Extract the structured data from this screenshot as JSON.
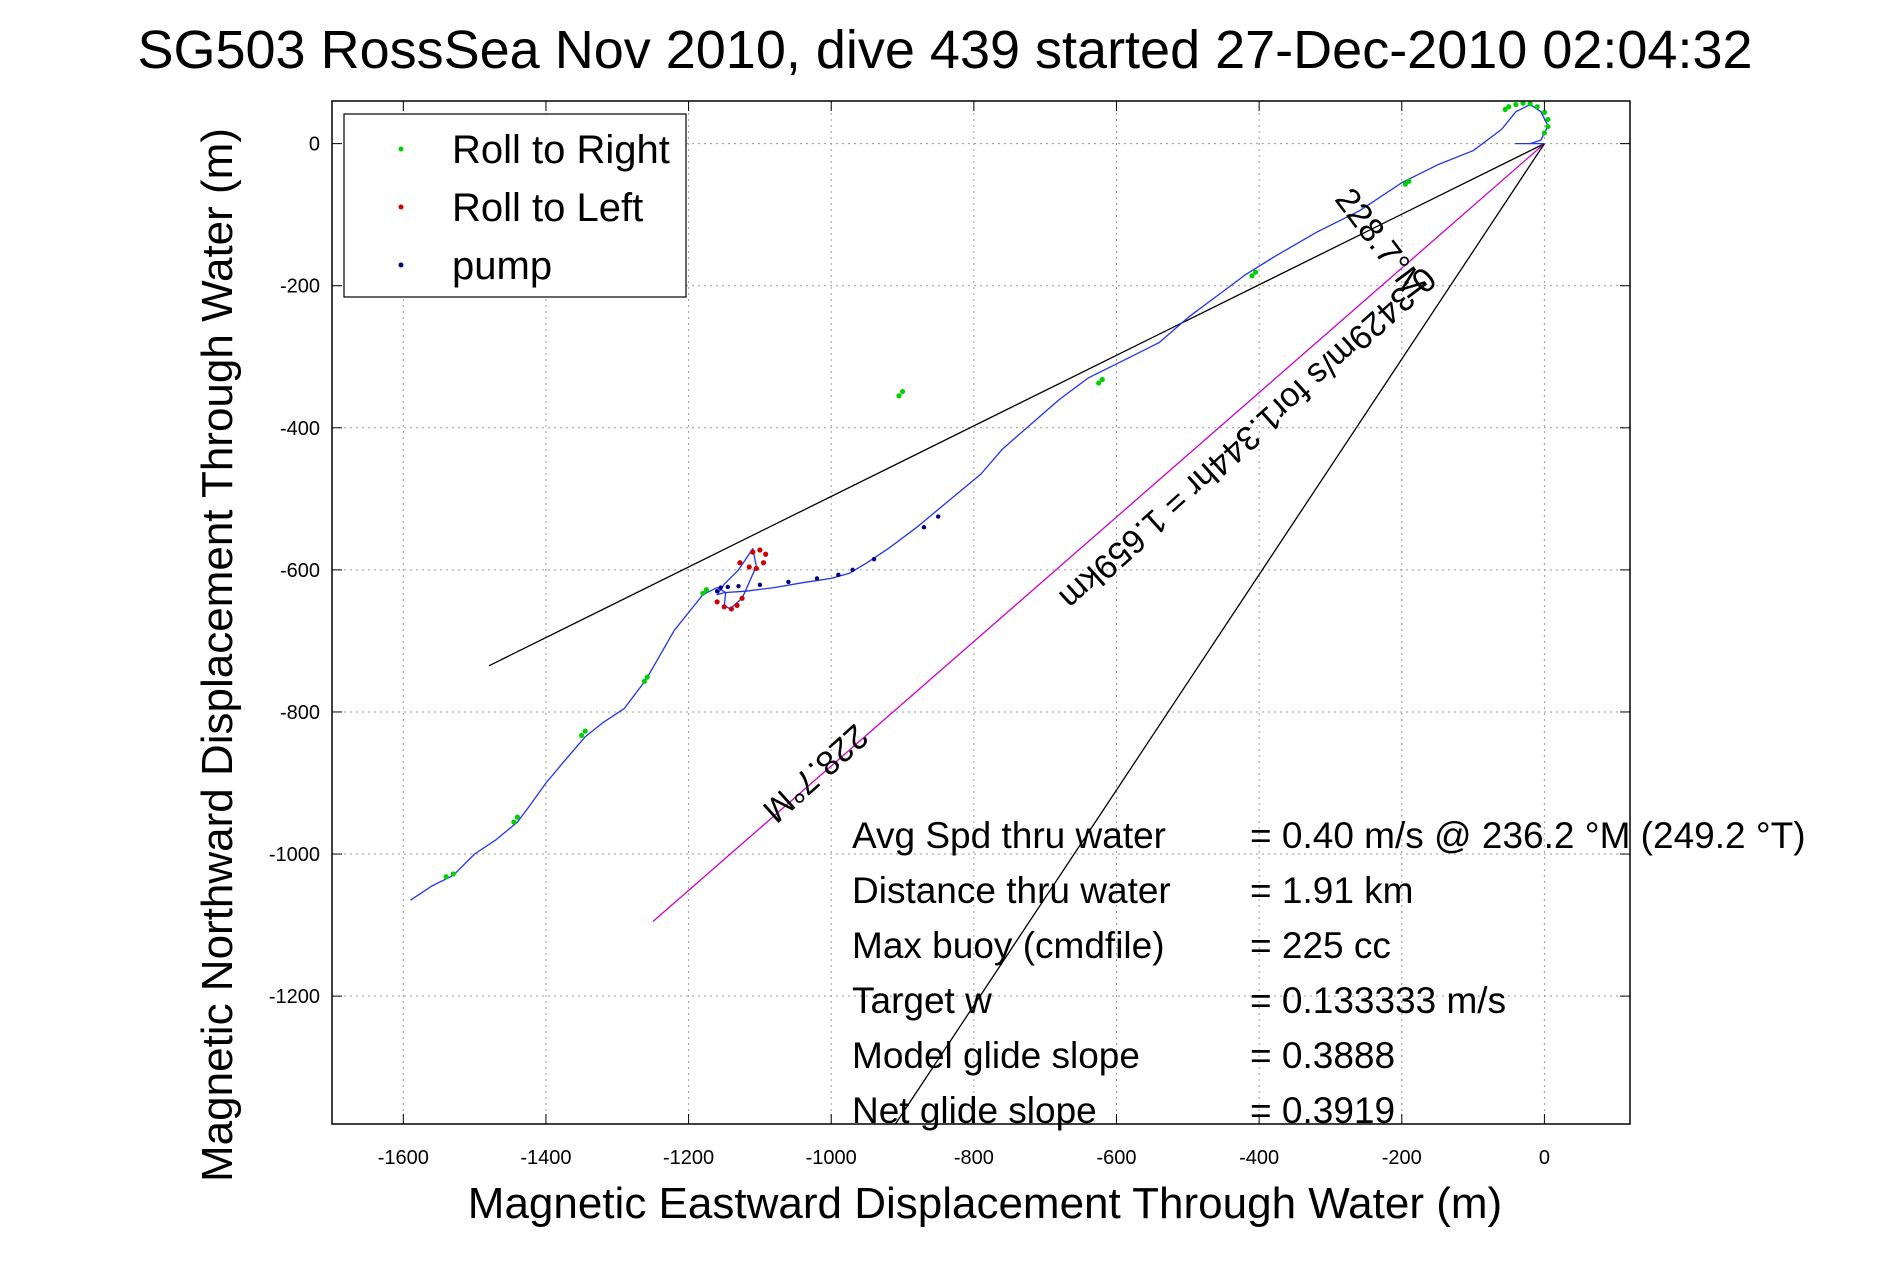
{
  "chart_data": {
    "type": "line",
    "title": "SG503 RossSea Nov 2010, dive 439 started 27-Dec-2010 02:04:32",
    "xlabel": "Magnetic Eastward Displacement Through Water (m)",
    "ylabel": "Magnetic Northward Displacement Through Water (m)",
    "xlim": [
      -1700,
      120
    ],
    "ylim": [
      -1380,
      60
    ],
    "xticks": [
      -1600,
      -1400,
      -1200,
      -1000,
      -800,
      -600,
      -400,
      -200,
      0
    ],
    "yticks": [
      0,
      -200,
      -400,
      -600,
      -800,
      -1000,
      -1200
    ],
    "grid": true,
    "legend_position": "top-left",
    "legend": [
      {
        "name": "Roll to Right",
        "color": "#00d000"
      },
      {
        "name": "Roll to Left",
        "color": "#d00000"
      },
      {
        "name": "pump",
        "color": "#000080"
      }
    ],
    "track": {
      "color": "#2233ee",
      "x": [
        -1590,
        -1560,
        -1530,
        -1500,
        -1470,
        -1440,
        -1425,
        -1400,
        -1375,
        -1345,
        -1320,
        -1290,
        -1260,
        -1240,
        -1220,
        -1200,
        -1180,
        -1160,
        -1148,
        -1150,
        -1142,
        -1125,
        -1105,
        -1110,
        -1130,
        -1150,
        -1160,
        -1150,
        -1120,
        -1080,
        -1040,
        -1000,
        -975,
        -950,
        -920,
        -880,
        -850,
        -820,
        -790,
        -760,
        -720,
        -680,
        -640,
        -610,
        -580,
        -540,
        -500,
        -460,
        -420,
        -380,
        -320,
        -260,
        -200,
        -150,
        -100,
        -60,
        -40,
        -20,
        -5,
        5,
        -5,
        -20,
        -40,
        0
      ],
      "y": [
        -1065,
        -1045,
        -1030,
        -1000,
        -980,
        -955,
        -935,
        -900,
        -870,
        -835,
        -815,
        -795,
        -755,
        -720,
        -685,
        -660,
        -635,
        -625,
        -632,
        -650,
        -655,
        -640,
        -595,
        -570,
        -600,
        -620,
        -635,
        -632,
        -630,
        -625,
        -618,
        -612,
        -605,
        -590,
        -570,
        -540,
        -515,
        -490,
        -465,
        -430,
        -395,
        -360,
        -330,
        -315,
        -300,
        -280,
        -245,
        -215,
        -185,
        -160,
        -125,
        -95,
        -55,
        -30,
        -10,
        20,
        45,
        55,
        45,
        25,
        5,
        0,
        0,
        0
      ]
    },
    "rays": [
      {
        "x": [
          -1480,
          0
        ],
        "y": [
          -735,
          0
        ],
        "color": "#000000"
      },
      {
        "x": [
          -1250,
          0
        ],
        "y": [
          -1095,
          0
        ],
        "color": "#cc00cc"
      },
      {
        "x": [
          -910,
          0
        ],
        "y": [
          -1380,
          0
        ],
        "color": "#000000"
      }
    ],
    "roll_right_points": {
      "x": [
        -1540,
        -1530,
        -1445,
        -1440,
        -1350,
        -1345,
        -1262,
        -1258,
        -1180,
        -1175,
        -905,
        -900,
        -625,
        -620,
        -410,
        -405,
        -195,
        -190,
        -55,
        -50,
        -40,
        -30,
        -20,
        -10,
        0,
        5,
        5,
        0
      ],
      "y": [
        -1032,
        -1028,
        -955,
        -948,
        -833,
        -827,
        -757,
        -751,
        -633,
        -628,
        -355,
        -349,
        -337,
        -332,
        -186,
        -181,
        -57,
        -53,
        48,
        52,
        55,
        57,
        56,
        52,
        44,
        34,
        24,
        15
      ]
    },
    "roll_left_points": {
      "x": [
        -1160,
        -1150,
        -1140,
        -1132,
        -1125,
        -1128,
        -1110,
        -1100,
        -1092,
        -1095,
        -1105,
        -1115
      ],
      "y": [
        -645,
        -652,
        -655,
        -650,
        -640,
        -590,
        -575,
        -572,
        -578,
        -590,
        -598,
        -596
      ]
    },
    "pump_points": {
      "x": [
        -1160,
        -1155,
        -1145,
        -1130,
        -1100,
        -1060,
        -1020,
        -990,
        -970,
        -940,
        -870,
        -850
      ],
      "y": [
        -630,
        -625,
        -624,
        -623,
        -621,
        -617,
        -612,
        -607,
        -600,
        -585,
        -540,
        -525
      ]
    },
    "annotations": {
      "upper_heading": "228.7°M",
      "lower_heading": "228.7°M",
      "speed_line": "0.3429m/s for1.344hr = 1.659km"
    },
    "info_rows": [
      {
        "label": "Avg Spd thru water",
        "value": "=  0.40 m/s @ 236.2 °M (249.2 °T)"
      },
      {
        "label": "Distance thru water",
        "value": "=  1.91 km"
      },
      {
        "label": "Max buoy (cmdfile)",
        "value": "= 225 cc"
      },
      {
        "label": "Target w",
        "value": "= 0.133333 m/s"
      },
      {
        "label": "Model glide slope",
        "value": "= 0.3888"
      },
      {
        "label": "Net glide slope",
        "value": "= 0.3919"
      }
    ]
  }
}
